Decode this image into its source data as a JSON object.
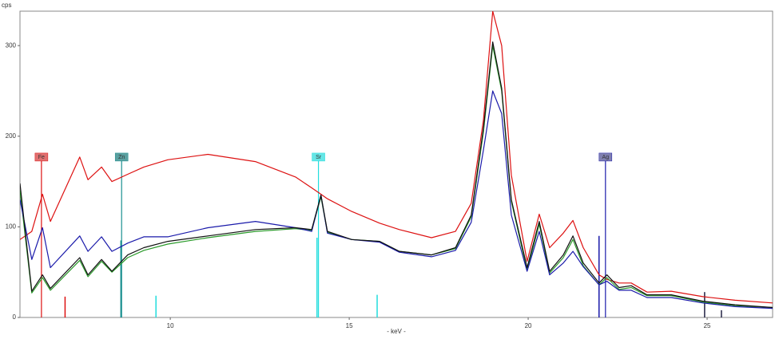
{
  "chart_data": {
    "type": "line",
    "ylabel": "cps",
    "xlabel": "- keV -",
    "xlim": [
      5.8,
      26.83
    ],
    "xticks": [
      10,
      15,
      20,
      25
    ],
    "ylim": [
      0,
      338
    ],
    "yticks": [
      0,
      100,
      200,
      300
    ],
    "x": [
      5.8,
      6.13,
      6.43,
      6.65,
      7.47,
      7.7,
      8.08,
      8.37,
      8.81,
      9.26,
      9.93,
      11.05,
      12.38,
      13.5,
      13.95,
      14.21,
      14.39,
      15.07,
      15.85,
      16.4,
      17.3,
      17.97,
      18.41,
      18.75,
      19.01,
      19.26,
      19.53,
      19.97,
      20.31,
      20.6,
      20.98,
      21.25,
      21.54,
      21.98,
      22.2,
      22.54,
      22.88,
      23.32,
      24.0,
      24.88,
      25.78,
      26.83
    ],
    "series": [
      {
        "color": "#dd1111",
        "values": [
          86,
          95,
          136,
          106,
          177,
          152,
          166,
          150,
          158,
          166,
          174,
          180,
          172,
          155,
          143,
          136,
          131,
          117,
          104,
          97,
          88,
          95,
          126,
          218,
          338,
          300,
          157,
          62,
          114,
          77,
          93,
          107,
          77,
          47,
          42,
          38,
          38,
          28,
          29,
          23,
          19,
          16
        ]
      },
      {
        "color": "#2a9a2a",
        "values": [
          140,
          27,
          44,
          30,
          63,
          45,
          62,
          50,
          66,
          74,
          81,
          88,
          95,
          98,
          96,
          133,
          94,
          86,
          84,
          73,
          69,
          76,
          111,
          205,
          300,
          250,
          128,
          52,
          103,
          49,
          66,
          86,
          57,
          36,
          44,
          31,
          33,
          24,
          24,
          17,
          13,
          11
        ]
      },
      {
        "color": "#1a1aaa",
        "values": [
          130,
          64,
          99,
          55,
          90,
          73,
          89,
          73,
          82,
          89,
          89,
          99,
          106,
          99,
          95,
          135,
          93,
          86,
          83,
          72,
          67,
          74,
          105,
          185,
          250,
          225,
          113,
          51,
          95,
          47,
          60,
          73,
          56,
          36,
          40,
          30,
          30,
          22,
          22,
          16,
          12,
          10
        ]
      },
      {
        "color": "#111111",
        "values": [
          148,
          29,
          47,
          32,
          66,
          47,
          64,
          51,
          69,
          77,
          84,
          90,
          97,
          99,
          97,
          135,
          95,
          86,
          84,
          73,
          69,
          77,
          113,
          209,
          304,
          253,
          130,
          55,
          106,
          51,
          69,
          90,
          60,
          38,
          47,
          33,
          35,
          25,
          25,
          18,
          14,
          11
        ]
      }
    ],
    "markers": [
      {
        "label": "Fe",
        "x": 6.4,
        "height": 177,
        "color": "#e07070",
        "line_color": "#dd1111"
      },
      {
        "label": "Zn",
        "x": 8.64,
        "height": 177,
        "color": "#5aa0a0",
        "line_color": "#1a9090"
      },
      {
        "label": "Sr",
        "x": 14.14,
        "height": 177,
        "color": "#66e6e6",
        "line_color": "#22dddd"
      },
      {
        "label": "Ag",
        "x": 22.16,
        "height": 177,
        "color": "#8080b0",
        "line_color": "#1a1aaa"
      }
    ],
    "lines": [
      {
        "x": 7.06,
        "height": 23,
        "color": "#dd1111"
      },
      {
        "x": 8.62,
        "height": 85,
        "color": "#1a9090"
      },
      {
        "x": 9.6,
        "height": 24,
        "color": "#22dddd"
      },
      {
        "x": 14.1,
        "height": 88,
        "color": "#22dddd"
      },
      {
        "x": 15.78,
        "height": 25,
        "color": "#22dddd"
      },
      {
        "x": 21.98,
        "height": 90,
        "color": "#1a1aaa"
      },
      {
        "x": 24.93,
        "height": 28,
        "color": "#222244"
      },
      {
        "x": 25.4,
        "height": 8,
        "color": "#222244"
      }
    ]
  }
}
